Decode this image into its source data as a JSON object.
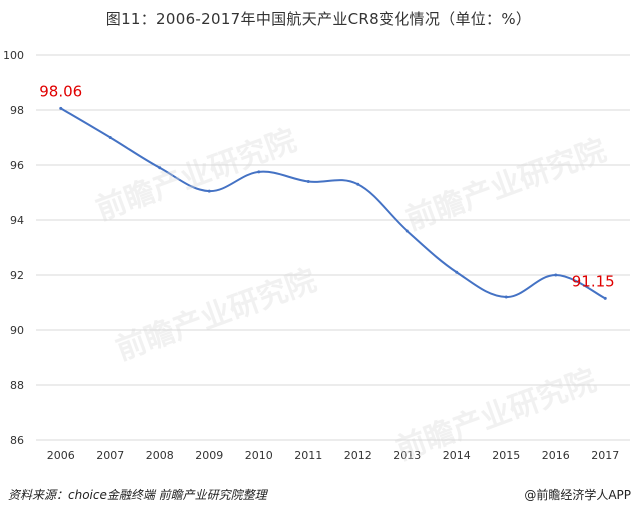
{
  "chart_data": {
    "type": "line",
    "title": "图11：2006-2017年中国航天产业CR8变化情况（单位：%）",
    "categories": [
      "2006",
      "2007",
      "2008",
      "2009",
      "2010",
      "2011",
      "2012",
      "2013",
      "2014",
      "2015",
      "2016",
      "2017"
    ],
    "series": [
      {
        "values": [
          98.06,
          97.0,
          95.9,
          95.05,
          95.75,
          95.4,
          95.3,
          93.6,
          92.1,
          91.2,
          92.0,
          91.15
        ]
      }
    ],
    "y_ticks": [
      "86",
      "88",
      "90",
      "92",
      "94",
      "96",
      "98",
      "100"
    ],
    "ylim": [
      86,
      100
    ],
    "annotations": [
      {
        "category": "2006",
        "value": 98.06,
        "text": "98.06"
      },
      {
        "category": "2017",
        "value": 91.15,
        "text": "91.15"
      }
    ],
    "line_color": "#4472c4",
    "annotation_color": "#e00000",
    "grid": true,
    "legend": "none"
  },
  "footer": {
    "source": "资料来源：choice金融终端 前瞻产业研究院整理",
    "brand": "@前瞻经济学人APP"
  },
  "watermark": {
    "text": "前瞻产业研究院"
  }
}
